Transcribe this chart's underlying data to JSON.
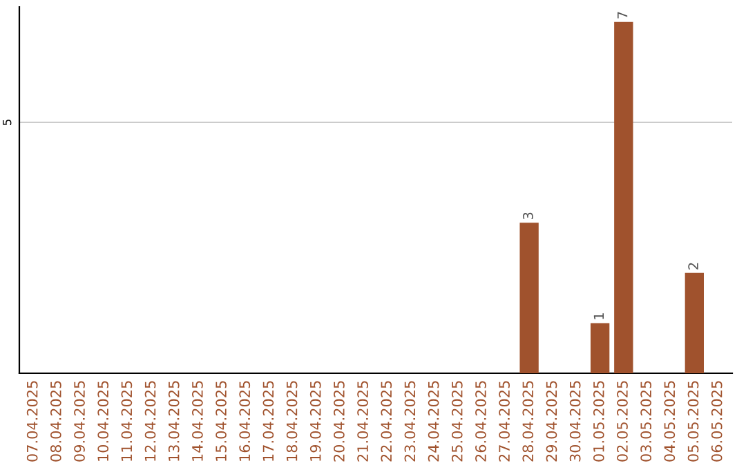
{
  "chart_data": {
    "type": "bar",
    "categories": [
      "07.04.2025",
      "08.04.2025",
      "09.04.2025",
      "10.04.2025",
      "11.04.2025",
      "12.04.2025",
      "13.04.2025",
      "14.04.2025",
      "15.04.2025",
      "16.04.2025",
      "17.04.2025",
      "18.04.2025",
      "19.04.2025",
      "20.04.2025",
      "21.04.2025",
      "22.04.2025",
      "23.04.2025",
      "24.04.2025",
      "25.04.2025",
      "26.04.2025",
      "27.04.2025",
      "28.04.2025",
      "29.04.2025",
      "30.04.2025",
      "01.05.2025",
      "02.05.2025",
      "03.05.2025",
      "04.05.2025",
      "05.05.2025",
      "06.05.2025"
    ],
    "values": [
      null,
      null,
      null,
      null,
      null,
      null,
      null,
      null,
      null,
      null,
      null,
      null,
      null,
      null,
      null,
      null,
      null,
      null,
      null,
      null,
      null,
      3,
      null,
      null,
      1,
      7,
      null,
      null,
      2,
      null
    ],
    "data_labels": true,
    "ylim": [
      0,
      7.3
    ],
    "color": "#a0522d",
    "ref_lines": [
      {
        "axis": "y",
        "value": 5,
        "label": "5",
        "color": "#cccccc"
      }
    ],
    "legend": false
  }
}
